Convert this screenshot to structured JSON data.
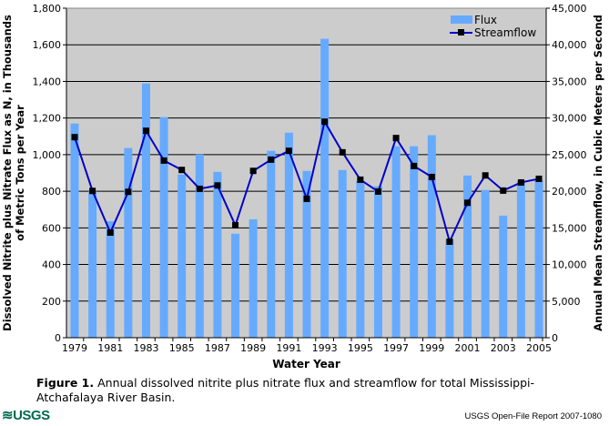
{
  "chart_data": {
    "type": "bar",
    "title": "",
    "xlabel": "Water Year",
    "ylabel": "Dissolved Nitrite plus Nitrate Flux as N, in Thousands of Metric Tons per Year",
    "y2label": "Annual Mean Streamflow, in Cubic Meters per Second",
    "ylim": [
      0,
      1800
    ],
    "y2lim": [
      0,
      45000
    ],
    "yticks": [
      "0",
      "200",
      "400",
      "600",
      "800",
      "1,000",
      "1,200",
      "1,400",
      "1,600",
      "1,800"
    ],
    "y2ticks": [
      "0",
      "5,000",
      "10,000",
      "15,000",
      "20,000",
      "25,000",
      "30,000",
      "35,000",
      "40,000",
      "45,000"
    ],
    "xtick_labels": [
      "1979",
      "1981",
      "1983",
      "1985",
      "1987",
      "1989",
      "1991",
      "1993",
      "1995",
      "1997",
      "1999",
      "2001",
      "2003",
      "2005"
    ],
    "categories": [
      1979,
      1980,
      1981,
      1982,
      1983,
      1984,
      1985,
      1986,
      1987,
      1988,
      1989,
      1990,
      1991,
      1992,
      1993,
      1994,
      1995,
      1996,
      1997,
      1998,
      1999,
      2000,
      2001,
      2002,
      2003,
      2004,
      2005
    ],
    "series": [
      {
        "name": "Flux",
        "type": "bar",
        "axis": "left",
        "color": "#66aaff",
        "values": [
          1170,
          800,
          636,
          1036,
          1389,
          1205,
          891,
          1001,
          906,
          568,
          647,
          1021,
          1120,
          911,
          1633,
          916,
          856,
          827,
          1046,
          1046,
          1106,
          538,
          886,
          807,
          667,
          856,
          861
        ]
      },
      {
        "name": "Streamflow",
        "type": "line",
        "axis": "right",
        "color": "#0000cc",
        "values": [
          27390,
          20045,
          14360,
          19920,
          28260,
          24190,
          22910,
          20335,
          20790,
          15350,
          22780,
          24320,
          25520,
          18965,
          29500,
          25315,
          21580,
          19960,
          27265,
          23450,
          21950,
          13115,
          18425,
          22160,
          20090,
          21200,
          21700
        ]
      }
    ],
    "grid": true,
    "legend": "top-right"
  },
  "caption": {
    "label": "Figure 1.",
    "text": " Annual dissolved nitrite plus nitrate flux and streamflow for total Mississippi-Atchafalaya River Basin."
  },
  "footer": {
    "logo": "≋USGS",
    "report": "USGS Open-File Report 2007-1080"
  }
}
